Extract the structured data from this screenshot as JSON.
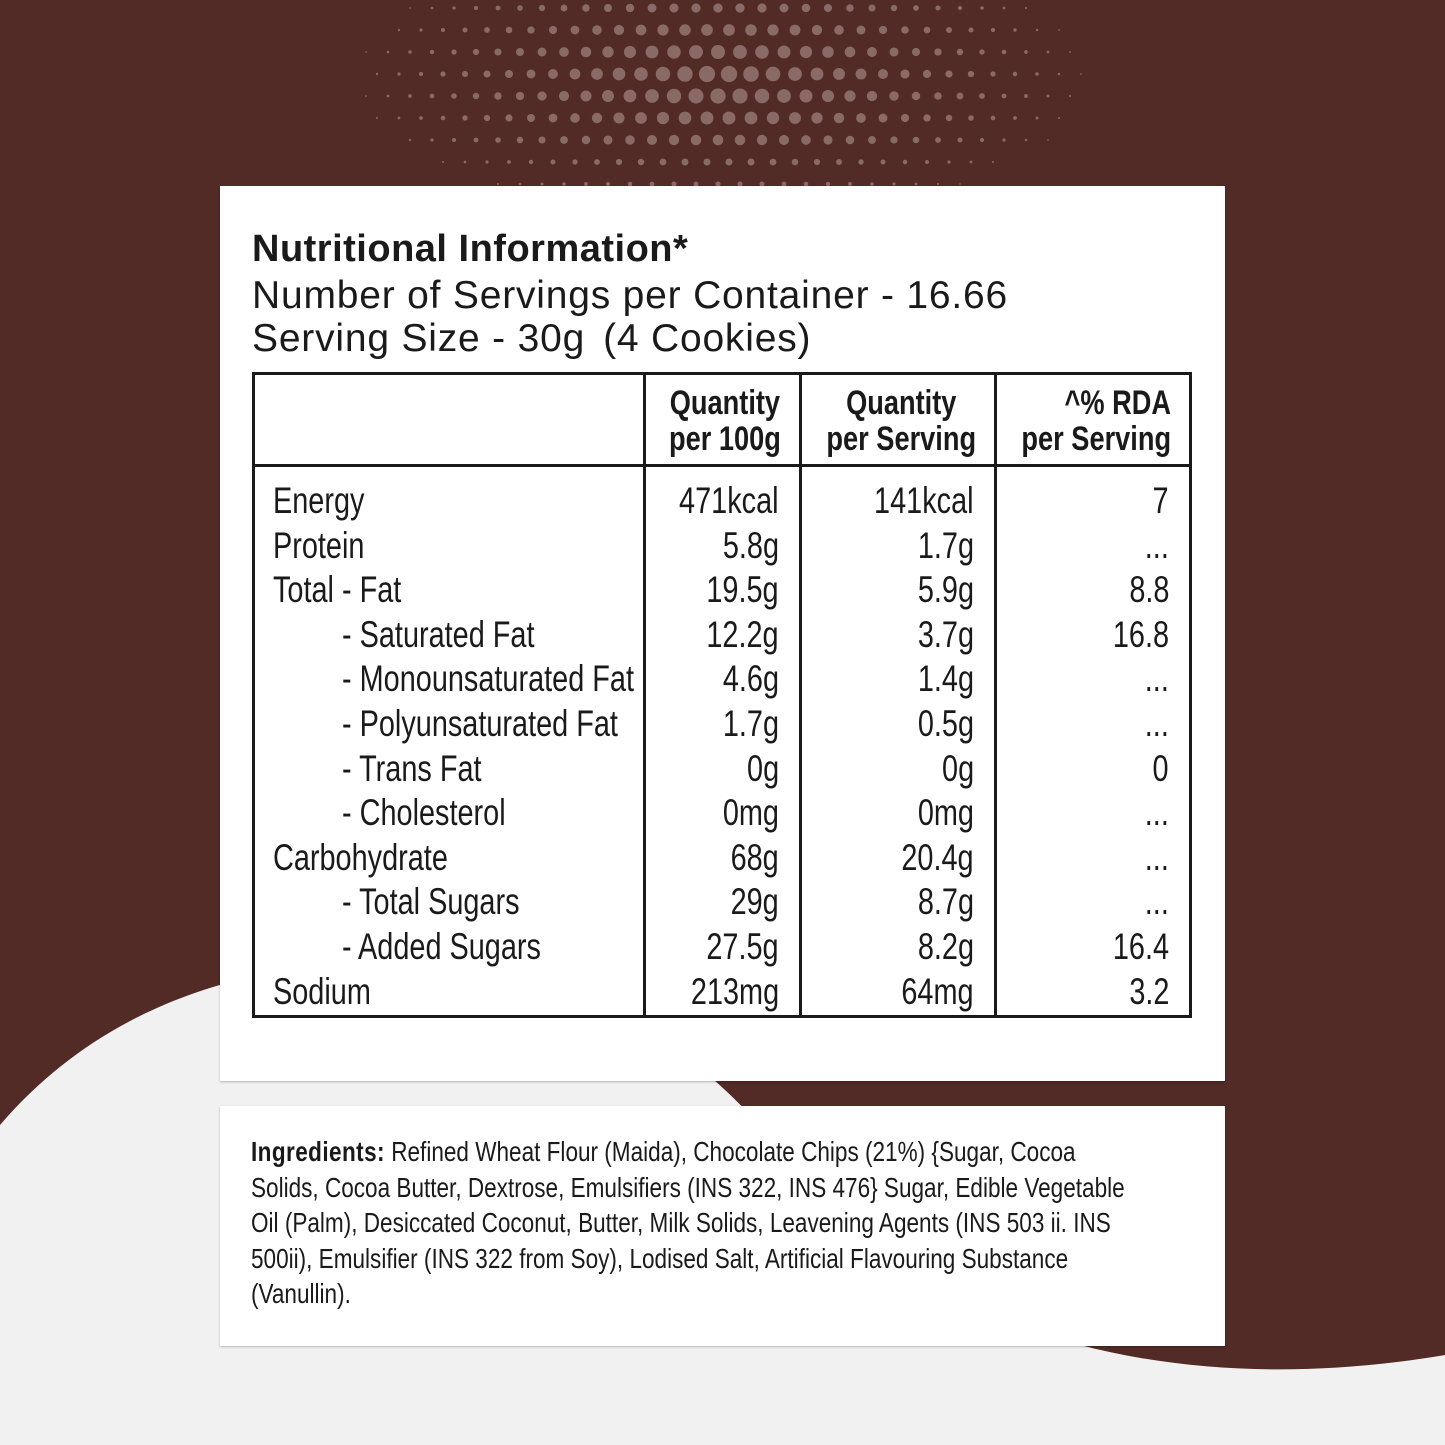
{
  "colors": {
    "background_brown": "#522a26",
    "background_light": "#f1f1f2",
    "panel": "#ffffff",
    "text": "#1a1a1a"
  },
  "nutrition": {
    "title": "Nutritional Information*",
    "servings_per_container": "Number of Servings per Container - 16.66",
    "serving_size": "Serving Size - 30g",
    "serving_size_note": "(4 Cookies)",
    "headers": {
      "col1_line1": "Quantity",
      "col1_line2": "per 100g",
      "col2_line1": "Quantity",
      "col2_line2": "per Serving",
      "col3_line1": "^% RDA",
      "col3_line2": "per Serving"
    },
    "rows": [
      {
        "name": "Energy",
        "per_100g": "471kcal",
        "per_serving": "141kcal",
        "rda": "7",
        "sub": false
      },
      {
        "name": "Protein",
        "per_100g": "5.8g",
        "per_serving": "1.7g",
        "rda": "...",
        "sub": false
      },
      {
        "name": "Total - Fat",
        "per_100g": "19.5g",
        "per_serving": "5.9g",
        "rda": "8.8",
        "sub": false
      },
      {
        "name": "- Saturated Fat",
        "per_100g": "12.2g",
        "per_serving": "3.7g",
        "rda": "16.8",
        "sub": true
      },
      {
        "name": "- Monounsaturated Fat",
        "per_100g": "4.6g",
        "per_serving": "1.4g",
        "rda": "...",
        "sub": true
      },
      {
        "name": "- Polyunsaturated Fat",
        "per_100g": "1.7g",
        "per_serving": "0.5g",
        "rda": "...",
        "sub": true
      },
      {
        "name": "- Trans Fat",
        "per_100g": "0g",
        "per_serving": "0g",
        "rda": "0",
        "sub": true
      },
      {
        "name": "- Cholesterol",
        "per_100g": "0mg",
        "per_serving": "0mg",
        "rda": "...",
        "sub": true
      },
      {
        "name": "Carbohydrate",
        "per_100g": "68g",
        "per_serving": "20.4g",
        "rda": "...",
        "sub": false
      },
      {
        "name": "- Total Sugars",
        "per_100g": "29g",
        "per_serving": "8.7g",
        "rda": "...",
        "sub": true
      },
      {
        "name": "- Added Sugars",
        "per_100g": "27.5g",
        "per_serving": "8.2g",
        "rda": "16.4",
        "sub": true
      },
      {
        "name": "Sodium",
        "per_100g": "213mg",
        "per_serving": "64mg",
        "rda": "3.2",
        "sub": false
      }
    ]
  },
  "ingredients": {
    "label": "Ingredients:",
    "lines": [
      "Refined Wheat Flour (Maida), Chocolate Chips (21%)  {Sugar, Cocoa",
      "Solids, Cocoa Butter, Dextrose, Emulsifiers (INS 322, INS 476} Sugar, Edible Vegetable",
      "Oil (Palm), Desiccated Coconut, Butter, Milk Solids, Leavening Agents (INS 503 ii. INS",
      "500ii), Emulsifier (INS 322 from Soy), Lodised Salt, Artificial Flavouring Substance",
      "(Vanullin)."
    ]
  }
}
